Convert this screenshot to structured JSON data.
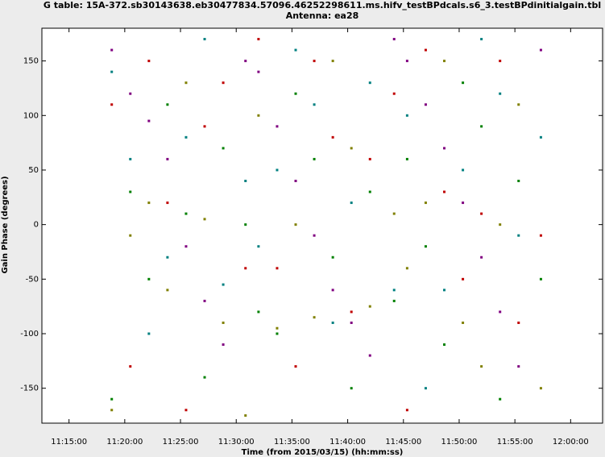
{
  "chart_data": {
    "type": "scatter",
    "title": "G table: 15A-372.sb30143638.eb30477834.57096.46252298611.ms.hifv_testBPdcals.s6_3.testBPdinitialgain.tbl",
    "subtitle": "Antenna: ea28",
    "x_label": "Time (from 2015/03/15) (hh:mm:ss)",
    "y_label": "Gain Phase (degrees)",
    "x": [
      40730,
      40830,
      40930,
      41030,
      41130,
      41230,
      41330,
      41450,
      41520,
      41620,
      41720,
      41820,
      41920,
      42020,
      42120,
      42250,
      42320,
      42420,
      42520,
      42620,
      42720,
      42820,
      42920,
      43040
    ],
    "series": [
      {
        "color": "#800080",
        "values": [
          160,
          120,
          95,
          60,
          -20,
          -70,
          -110,
          150,
          140,
          90,
          40,
          -10,
          -60,
          -90,
          -120,
          170,
          150,
          110,
          70,
          20,
          -30,
          -80,
          -130,
          160
        ]
      },
      {
        "color": "#008000",
        "values": [
          -160,
          30,
          -50,
          110,
          10,
          -140,
          70,
          0,
          -80,
          -100,
          120,
          60,
          -30,
          -150,
          30,
          -70,
          60,
          -20,
          -110,
          130,
          90,
          -160,
          40,
          -50
        ]
      },
      {
        "color": "#808000",
        "values": [
          -170,
          -10,
          20,
          -60,
          130,
          5,
          -90,
          -175,
          100,
          -95,
          0,
          -85,
          150,
          70,
          -75,
          10,
          -40,
          20,
          150,
          -90,
          -130,
          0,
          110,
          -150
        ]
      },
      {
        "color": "#008080",
        "values": [
          140,
          60,
          -100,
          -30,
          80,
          170,
          -55,
          40,
          -20,
          50,
          160,
          110,
          -90,
          20,
          130,
          -60,
          100,
          -150,
          -60,
          50,
          170,
          120,
          -10,
          80
        ]
      },
      {
        "color": "#c00000",
        "values": [
          110,
          -130,
          150,
          20,
          -170,
          90,
          130,
          -40,
          170,
          -40,
          -130,
          150,
          80,
          -80,
          60,
          120,
          -170,
          160,
          30,
          -50,
          10,
          150,
          -90,
          -10
        ]
      }
    ],
    "xlim": [
      40354,
      43372
    ],
    "ylim": [
      -182,
      180
    ],
    "xticks": [
      {
        "value": 40500,
        "label": "11:15:00"
      },
      {
        "value": 40800,
        "label": "11:20:00"
      },
      {
        "value": 41100,
        "label": "11:25:00"
      },
      {
        "value": 41400,
        "label": "11:30:00"
      },
      {
        "value": 41700,
        "label": "11:35:00"
      },
      {
        "value": 42000,
        "label": "11:40:00"
      },
      {
        "value": 42300,
        "label": "11:45:00"
      },
      {
        "value": 42600,
        "label": "11:50:00"
      },
      {
        "value": 42900,
        "label": "11:55:00"
      },
      {
        "value": 43200,
        "label": "12:00:00"
      }
    ],
    "yticks": [
      -150,
      -100,
      -50,
      0,
      50,
      100,
      150
    ]
  }
}
